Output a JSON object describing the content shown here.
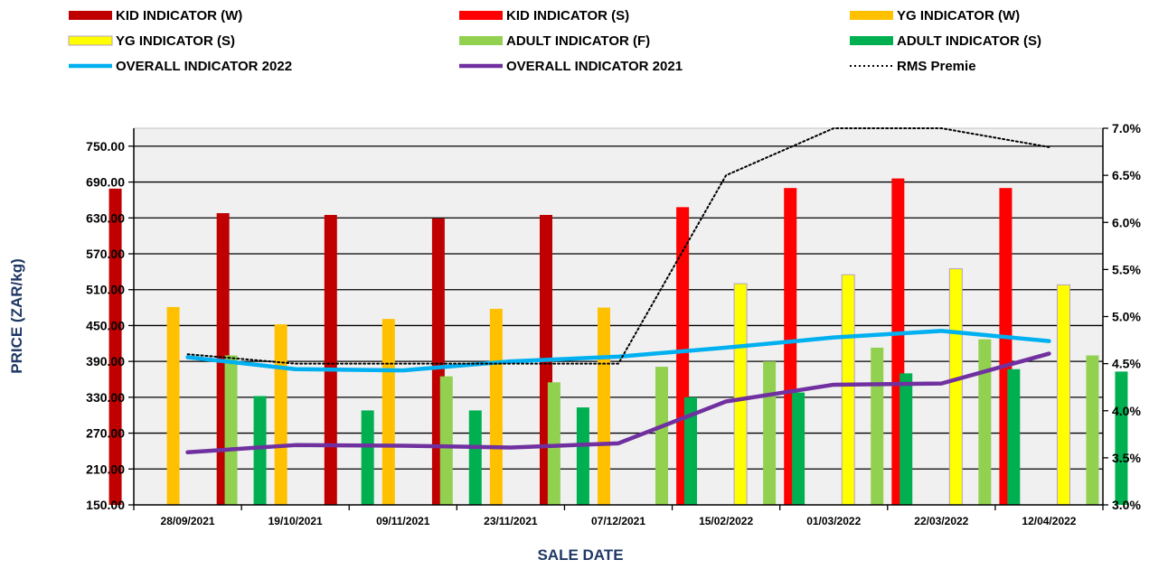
{
  "chart_data": {
    "type": "bar",
    "xlabel": "SALE DATE",
    "ylabel": "PRICE (ZAR/kg)",
    "ylim": [
      150,
      780
    ],
    "y2lim": [
      3.0,
      7.0
    ],
    "grid": true,
    "legend_position": "top",
    "categories": [
      "28/09/2021",
      "19/10/2021",
      "09/11/2021",
      "23/11/2021",
      "07/12/2021",
      "15/02/2022",
      "01/03/2022",
      "22/03/2022",
      "12/04/2022"
    ],
    "y_ticks": [
      "150.00",
      "210.00",
      "270.00",
      "330.00",
      "390.00",
      "450.00",
      "510.00",
      "570.00",
      "630.00",
      "690.00",
      "750.00"
    ],
    "y2_ticks": [
      "3.0%",
      "3.5%",
      "4.0%",
      "4.5%",
      "5.0%",
      "5.5%",
      "6.0%",
      "6.5%",
      "7.0%"
    ],
    "bar_series": [
      {
        "name": "KID INDICATOR (W)",
        "color": "#c00000",
        "values": [
          679,
          638,
          635,
          629,
          635,
          150,
          150,
          150,
          150
        ]
      },
      {
        "name": "KID INDICATOR (S)",
        "color": "#ff0000",
        "values": [
          150,
          150,
          150,
          150,
          150,
          648,
          680,
          696,
          680
        ]
      },
      {
        "name": "YG INDICATOR (W)",
        "color": "#ffc000",
        "values": [
          481,
          452,
          461,
          478,
          480,
          150,
          150,
          150,
          150
        ]
      },
      {
        "name": "YG INDICATOR (S)",
        "color": "#ffff00",
        "values": [
          150,
          150,
          150,
          150,
          150,
          520,
          535,
          545,
          518
        ]
      },
      {
        "name": "ADULT INDICATOR (F)",
        "color": "#92d050",
        "values": [
          400,
          150,
          365,
          355,
          381,
          390,
          413,
          427,
          400
        ]
      },
      {
        "name": "ADULT INDICATOR (S)",
        "color": "#00b050",
        "values": [
          332,
          308,
          308,
          313,
          330,
          338,
          370,
          377,
          373
        ]
      }
    ],
    "line_series": [
      {
        "name": "OVERALL INDICATOR 2022",
        "color": "#00b0f0",
        "axis": "left",
        "values": [
          397,
          377,
          375,
          390,
          398,
          413,
          430,
          441,
          424
        ]
      },
      {
        "name": "OVERALL INDICATOR 2021",
        "color": "#7030a0",
        "axis": "left",
        "values": [
          238,
          250,
          249,
          246,
          253,
          323,
          351,
          353,
          403
        ]
      },
      {
        "name": "RMS Premie",
        "color": "#000000",
        "axis": "right",
        "dashed": true,
        "values": [
          4.6,
          4.5,
          4.5,
          4.5,
          4.5,
          6.5,
          7.0,
          7.0,
          6.8
        ]
      }
    ]
  }
}
